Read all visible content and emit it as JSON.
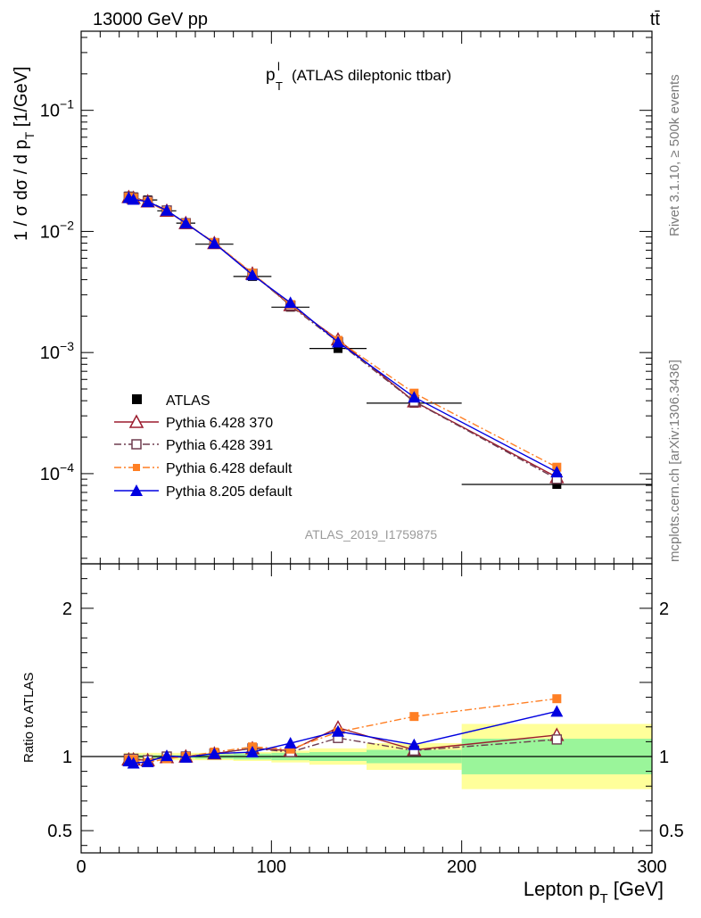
{
  "header": {
    "energy_label": "13000 GeV pp",
    "process_label": "tt̄"
  },
  "side_labels": {
    "rivet": "Rivet 3.1.10, ≥ 500k events",
    "mcplots": "mcplots.cern.ch [arXiv:1306.3436]"
  },
  "chart_data": [
    {
      "type": "line",
      "panel": "main",
      "title_main": "p",
      "title_sup": "l",
      "title_sub": "T",
      "title_rest": "(ATLAS dileptonic ttbar)",
      "ylabel_prefix": "1 / σ  dσ / d p",
      "ylabel_sub": "T",
      "ylabel_suffix": " [1/GeV]",
      "yscale": "log",
      "ylim": [
        1.8e-05,
        0.45
      ],
      "xlim": [
        0,
        300
      ],
      "y_tick_labels": [
        {
          "value": 0.1,
          "base": "10",
          "exp": "−1"
        },
        {
          "value": 0.01,
          "base": "10",
          "exp": "−2"
        },
        {
          "value": 0.001,
          "base": "10",
          "exp": "−3"
        },
        {
          "value": 0.0001,
          "base": "10",
          "exp": "−4"
        }
      ],
      "watermark": "ATLAS_2019_I1759875",
      "legend_position": "bottom-left",
      "x": [
        25,
        27.5,
        35,
        45,
        55,
        70,
        90,
        110,
        135,
        175,
        250
      ],
      "bin_edges": [
        22.5,
        27.5,
        30,
        40,
        50,
        60,
        80,
        100,
        120,
        150,
        200,
        300
      ],
      "series": [
        {
          "name": "ATLAS",
          "color": "#000000",
          "marker": "square-filled",
          "style": "none",
          "values": [
            0.0196,
            0.0193,
            0.0182,
            0.0148,
            0.0117,
            0.00785,
            0.00425,
            0.00237,
            0.00108,
            0.000382,
            8.15e-05
          ]
        },
        {
          "name": "Pythia 6.428 370",
          "color": "#9b1c2e",
          "marker": "triangle-open",
          "style": "solid",
          "values": [
            0.0192,
            0.0189,
            0.0177,
            0.0148,
            0.0117,
            0.008,
            0.00448,
            0.00246,
            0.00128,
            0.000395,
            9.35e-05
          ]
        },
        {
          "name": "Pythia 6.428 391",
          "color": "#6e3b4e",
          "marker": "square-open",
          "style": "dashdot",
          "values": [
            0.0193,
            0.019,
            0.0178,
            0.0149,
            0.0117,
            0.008,
            0.00448,
            0.00244,
            0.00122,
            0.000393,
            9.05e-05
          ]
        },
        {
          "name": "Pythia 6.428 default",
          "color": "#ff7f24",
          "marker": "square-filled",
          "style": "dashdot",
          "values": [
            0.0192,
            0.0189,
            0.0175,
            0.0146,
            0.0117,
            0.0081,
            0.00453,
            0.00249,
            0.00126,
            0.000462,
            0.000113
          ]
        },
        {
          "name": "Pythia 8.205 default",
          "color": "#0000e0",
          "marker": "triangle-filled",
          "style": "solid",
          "values": [
            0.019,
            0.0184,
            0.0176,
            0.0149,
            0.0117,
            0.008,
            0.00438,
            0.00258,
            0.00122,
            0.000428,
            0.000103
          ]
        }
      ]
    },
    {
      "type": "line",
      "panel": "ratio",
      "ylabel": "Ratio to ATLAS",
      "xlabel_prefix": "Lepton p",
      "xlabel_sub": "T",
      "xlabel_suffix": " [GeV]",
      "ylim": [
        0.35,
        2.3
      ],
      "xlim": [
        0,
        300
      ],
      "x_ticks": [
        0,
        100,
        200,
        300
      ],
      "y_tick_labels": [
        "2",
        "1",
        "0.5"
      ],
      "y_tick_values": [
        2,
        1,
        0.5
      ],
      "reference_line": 1,
      "uncertainty_bands": {
        "edges": [
          22.5,
          30,
          40,
          50,
          60,
          80,
          100,
          120,
          150,
          200,
          300
        ],
        "inner_green": [
          [
            0.985,
            1.015
          ],
          [
            0.99,
            1.01
          ],
          [
            0.99,
            1.01
          ],
          [
            0.99,
            1.01
          ],
          [
            0.985,
            1.015
          ],
          [
            0.98,
            1.02
          ],
          [
            0.975,
            1.025
          ],
          [
            0.97,
            1.03
          ],
          [
            0.955,
            1.045
          ],
          [
            0.88,
            1.12
          ]
        ],
        "outer_yellow": [
          [
            0.975,
            1.025
          ],
          [
            0.975,
            1.025
          ],
          [
            0.975,
            1.025
          ],
          [
            0.975,
            1.025
          ],
          [
            0.975,
            1.025
          ],
          [
            0.97,
            1.03
          ],
          [
            0.96,
            1.04
          ],
          [
            0.945,
            1.055
          ],
          [
            0.91,
            1.09
          ],
          [
            0.78,
            1.22
          ]
        ]
      },
      "x": [
        25,
        27.5,
        35,
        45,
        55,
        70,
        90,
        110,
        135,
        175,
        250
      ],
      "series": [
        {
          "name": "Pythia 6.428 370",
          "color": "#9b1c2e",
          "marker": "triangle-open",
          "style": "solid",
          "values": [
            0.98,
            0.98,
            0.975,
            0.995,
            1.0,
            1.02,
            1.055,
            1.04,
            1.195,
            1.045,
            1.145
          ]
        },
        {
          "name": "Pythia 6.428 391",
          "color": "#6e3b4e",
          "marker": "square-open",
          "style": "dashdot",
          "values": [
            0.985,
            0.985,
            0.975,
            1.0,
            1.0,
            1.02,
            1.055,
            1.03,
            1.125,
            1.04,
            1.115
          ]
        },
        {
          "name": "Pythia 6.428 default",
          "color": "#ff7f24",
          "marker": "square-filled",
          "style": "dashdot",
          "values": [
            0.98,
            0.98,
            0.96,
            0.985,
            1.0,
            1.03,
            1.065,
            1.05,
            1.165,
            1.27,
            1.39
          ]
        },
        {
          "name": "Pythia 8.205 default",
          "color": "#0000e0",
          "marker": "triangle-filled",
          "style": "solid",
          "values": [
            0.97,
            0.955,
            0.965,
            1.005,
            0.995,
            1.02,
            1.03,
            1.09,
            1.17,
            1.08,
            1.305
          ]
        }
      ]
    }
  ]
}
